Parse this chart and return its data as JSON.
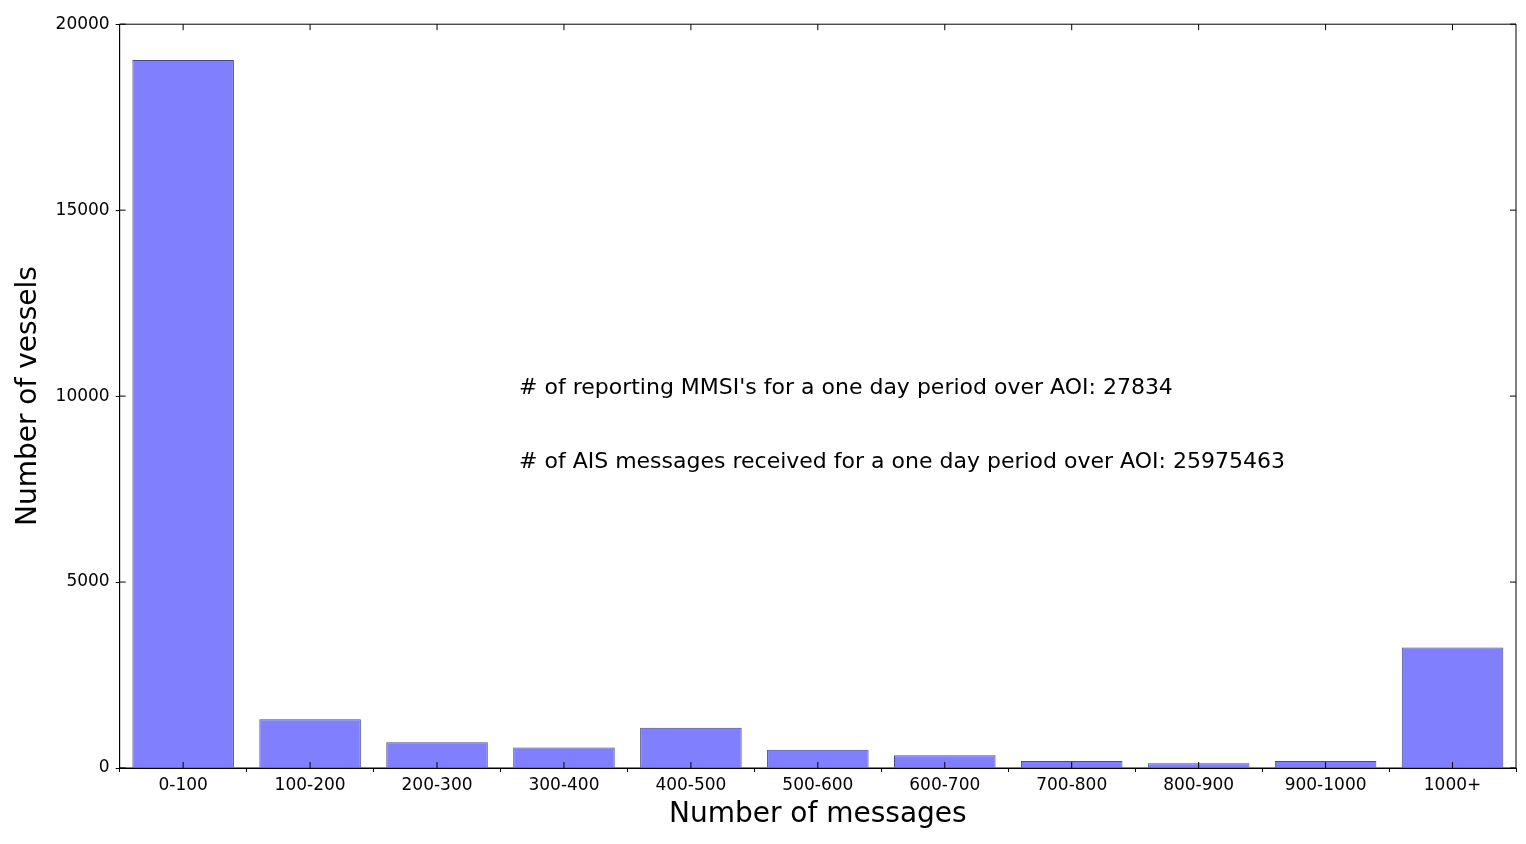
{
  "chart_data": {
    "type": "bar",
    "xlabel": "Number of messages",
    "ylabel": "Number of vessels",
    "categories": [
      "0-100",
      "100-200",
      "200-300",
      "300-400",
      "400-500",
      "500-600",
      "600-700",
      "700-800",
      "800-900",
      "900-1000",
      "1000+"
    ],
    "values": [
      19040,
      1310,
      690,
      550,
      1080,
      490,
      340,
      190,
      130,
      190,
      3240
    ],
    "color": "#8080ff",
    "ylim": [
      0,
      20000
    ],
    "yticks": [
      0,
      5000,
      10000,
      15000,
      20000
    ],
    "grid": false,
    "legend": false,
    "annotations": [
      "# of reporting MMSI's for a one day period over AOI: 27834",
      "# of AIS messages received for a one day period over AOI: 25975463"
    ]
  }
}
